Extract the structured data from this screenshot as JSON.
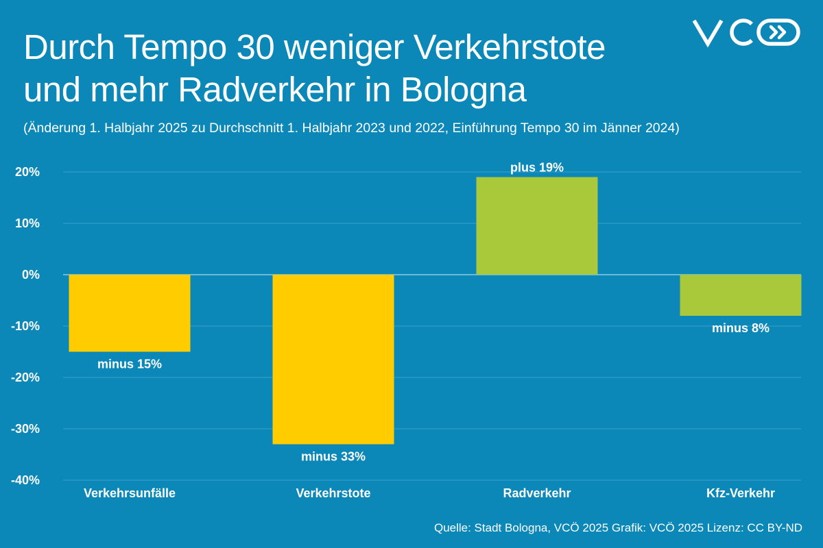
{
  "title_line1": "Durch Tempo 30 weniger Verkehrstote",
  "title_line2": "und mehr Radverkehr in Bologna",
  "subtitle": "(Änderung 1. Halbjahr 2025 zu Durchschnitt 1. Halbjahr 2023 und 2022, Einführung Tempo 30 im Jänner 2024)",
  "source": "Quelle: Stadt Bologna, VCÖ 2025 Grafik: VCÖ 2025 Lizenz: CC BY-ND",
  "logo": {
    "text": "VCÖ",
    "icon": "double-chevron-right-icon",
    "color": "#ffffff"
  },
  "colors": {
    "background": "#0b88b8",
    "yellow": "#ffcc00",
    "green": "#a9c93a",
    "grid": "#3aa0c8",
    "zero_line": "#8ccbe4",
    "text": "#ffffff"
  },
  "chart_data": {
    "type": "bar",
    "title": "Durch Tempo 30 weniger Verkehrstote und mehr Radverkehr in Bologna",
    "xlabel": "",
    "ylabel": "",
    "ylim": [
      -40,
      20
    ],
    "yticks": [
      20,
      10,
      0,
      -10,
      -20,
      -30,
      -40
    ],
    "ytick_labels": [
      "20%",
      "10%",
      "0%",
      "-10%",
      "-20%",
      "-30%",
      "-40%"
    ],
    "grid": true,
    "categories": [
      "Verkehrsunfälle",
      "Verkehrstote",
      "Radverkehr",
      "Kfz-Verkehr"
    ],
    "values": [
      -15,
      -33,
      19,
      -8
    ],
    "data_labels": [
      "minus 15%",
      "minus 33%",
      "plus 19%",
      "minus 8%"
    ],
    "bar_colors": [
      "#ffcc00",
      "#ffcc00",
      "#a9c93a",
      "#a9c93a"
    ]
  }
}
